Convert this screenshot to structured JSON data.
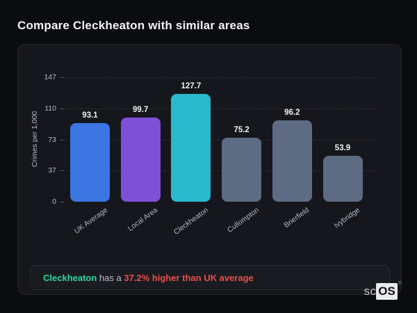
{
  "page": {
    "title": "Compare Cleckheaton with similar areas"
  },
  "chart_data": {
    "type": "bar",
    "categories": [
      "UK Average",
      "Local Area",
      "Cleckheaton",
      "Cullompton",
      "Brierfield",
      "Ivybridge"
    ],
    "values": [
      93.1,
      99.7,
      127.7,
      75.2,
      96.2,
      53.9
    ],
    "bar_colors": [
      "#3b76e2",
      "#7e50d8",
      "#29b9cc",
      "#5d6b83",
      "#5d6b83",
      "#5d6b83"
    ],
    "value_labels": [
      "93.1",
      "99.7",
      "127.7",
      "75.2",
      "96.2",
      "53.9"
    ],
    "title": "",
    "xlabel": "",
    "ylabel": "Crimes per 1,000",
    "yticks": [
      0,
      37,
      73,
      110,
      147
    ],
    "ylim": [
      0,
      147
    ],
    "grid": "horizontal-dashed",
    "legend": "none"
  },
  "note": {
    "area_name": "Cleckheaton",
    "middle_text": " has a ",
    "highlight_text": "37.2% higher than UK average",
    "area_color": "#2fd5a0",
    "highlight_color": "#e5504e"
  },
  "logo": {
    "prefix": "sc",
    "suffix": "OS",
    "registered_mark": "®"
  }
}
